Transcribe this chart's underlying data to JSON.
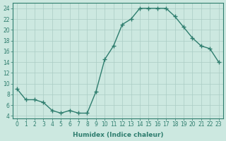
{
  "x": [
    0,
    1,
    2,
    3,
    4,
    5,
    6,
    7,
    8,
    9,
    10,
    11,
    12,
    13,
    14,
    15,
    16,
    17,
    18,
    19,
    20,
    21,
    22,
    23
  ],
  "y": [
    9,
    7,
    7,
    6.5,
    5,
    4.5,
    5,
    4.5,
    4.5,
    8.5,
    14.5,
    17,
    21,
    22,
    24,
    24,
    24,
    24,
    22.5,
    20.5,
    18.5,
    17,
    16.5,
    14
  ],
  "line_color": "#2e7d6e",
  "marker": "+",
  "marker_size": 4,
  "bg_color": "#cce8e0",
  "grid_color": "#aaccc4",
  "xlabel": "Humidex (Indice chaleur)",
  "ylabel": "",
  "xlim": [
    -0.5,
    23.5
  ],
  "ylim": [
    3.5,
    25
  ],
  "yticks": [
    4,
    6,
    8,
    10,
    12,
    14,
    16,
    18,
    20,
    22,
    24
  ],
  "xticks": [
    0,
    1,
    2,
    3,
    4,
    5,
    6,
    7,
    8,
    9,
    10,
    11,
    12,
    13,
    14,
    15,
    16,
    17,
    18,
    19,
    20,
    21,
    22,
    23
  ],
  "tick_label_fontsize": 5.5,
  "xlabel_fontsize": 6.5,
  "linewidth": 1.0,
  "marker_linewidth": 1.0
}
